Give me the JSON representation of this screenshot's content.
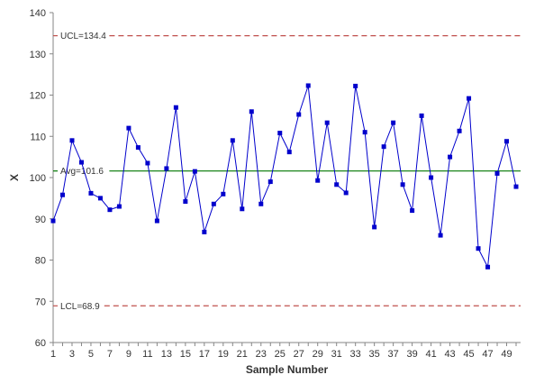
{
  "chart_data": {
    "type": "line",
    "title": "",
    "xlabel": "Sample Number",
    "ylabel": "X",
    "xlim": [
      1,
      50
    ],
    "ylim": [
      60,
      140
    ],
    "y_ticks": [
      60,
      70,
      80,
      90,
      100,
      110,
      120,
      130,
      140
    ],
    "x_tick_labels": [
      1,
      3,
      5,
      7,
      9,
      11,
      13,
      15,
      17,
      19,
      21,
      23,
      25,
      27,
      29,
      31,
      33,
      35,
      37,
      39,
      41,
      43,
      45,
      47,
      49
    ],
    "grid": false,
    "legend": "none",
    "x": [
      1,
      2,
      3,
      4,
      5,
      6,
      7,
      8,
      9,
      10,
      11,
      12,
      13,
      14,
      15,
      16,
      17,
      18,
      19,
      20,
      21,
      22,
      23,
      24,
      25,
      26,
      27,
      28,
      29,
      30,
      31,
      32,
      33,
      34,
      35,
      36,
      37,
      38,
      39,
      40,
      41,
      42,
      43,
      44,
      45,
      46,
      47,
      48,
      49,
      50
    ],
    "series": [
      {
        "color": "#0000CC",
        "values": [
          89.5,
          95.8,
          109.0,
          103.7,
          96.2,
          95.0,
          92.2,
          93.0,
          112.0,
          107.3,
          103.5,
          89.5,
          102.2,
          117.0,
          94.2,
          101.5,
          86.8,
          93.6,
          96.0,
          109.0,
          92.4,
          116.0,
          93.6,
          99.0,
          110.8,
          106.2,
          115.3,
          122.3,
          99.3,
          113.3,
          98.3,
          96.3,
          122.2,
          111.0,
          88.0,
          107.5,
          113.3,
          98.3,
          92.0,
          115.0,
          100.0,
          86.0,
          105.0,
          111.3,
          119.2,
          82.8,
          78.3,
          101.0,
          108.8,
          97.8
        ]
      }
    ],
    "reference_lines": [
      {
        "label": "UCL=134.4",
        "value": 134.4,
        "color": "#C0504D",
        "style": "dashed"
      },
      {
        "label": "Avg=101.6",
        "value": 101.6,
        "color": "#007700",
        "style": "solid"
      },
      {
        "label": "LCL=68.9",
        "value": 68.9,
        "color": "#C0504D",
        "style": "dashed"
      }
    ]
  }
}
